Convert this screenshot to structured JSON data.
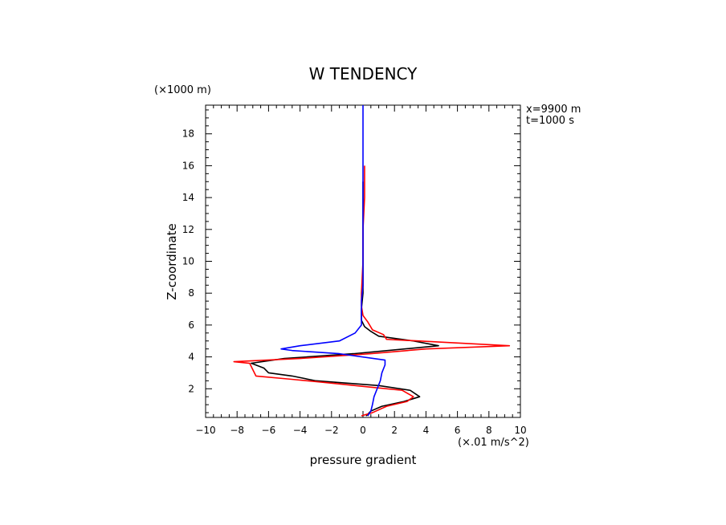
{
  "chart_data": {
    "type": "line",
    "title": "W TENDENCY",
    "xlabel": "pressure gradient",
    "ylabel": "Z-coordinate",
    "x_unit": "(×.01 m/s^2)",
    "y_unit": "(×1000 m)",
    "annotations": [
      "x=9900 m",
      "t=1000 s"
    ],
    "xlim": [
      -10,
      10
    ],
    "ylim": [
      0.2,
      19.8
    ],
    "xticks": [
      -10,
      -8,
      -6,
      -4,
      -2,
      0,
      2,
      4,
      6,
      8,
      10
    ],
    "yticks": [
      2,
      4,
      6,
      8,
      10,
      12,
      14,
      16,
      18
    ],
    "grid": false,
    "series": [
      {
        "color": "#000000",
        "points": [
          [
            0.2,
            0.3
          ],
          [
            0.5,
            0.6
          ],
          [
            1.2,
            0.9
          ],
          [
            2.6,
            1.2
          ],
          [
            3.6,
            1.5
          ],
          [
            3.0,
            1.9
          ],
          [
            1.0,
            2.2
          ],
          [
            -3.0,
            2.5
          ],
          [
            -4.5,
            2.8
          ],
          [
            -6.0,
            3.0
          ],
          [
            -6.3,
            3.3
          ],
          [
            -7.1,
            3.6
          ],
          [
            -5.0,
            3.9
          ],
          [
            -0.6,
            4.2
          ],
          [
            4.8,
            4.7
          ],
          [
            3.2,
            5.0
          ],
          [
            1.0,
            5.3
          ],
          [
            0.5,
            5.6
          ],
          [
            0.1,
            5.9
          ],
          [
            -0.1,
            6.3
          ],
          [
            -0.1,
            7.0
          ],
          [
            0.0,
            8.0
          ],
          [
            0.0,
            10.0
          ],
          [
            0.0,
            12.0
          ],
          [
            0.0,
            15.0
          ]
        ]
      },
      {
        "color": "#ff0000",
        "points": [
          [
            -0.1,
            0.3
          ],
          [
            0.6,
            0.5
          ],
          [
            1.5,
            0.9
          ],
          [
            2.8,
            1.2
          ],
          [
            3.2,
            1.5
          ],
          [
            2.5,
            1.9
          ],
          [
            0.5,
            2.1
          ],
          [
            -2.5,
            2.4
          ],
          [
            -4.6,
            2.6
          ],
          [
            -6.8,
            2.8
          ],
          [
            -7.0,
            3.2
          ],
          [
            -7.2,
            3.6
          ],
          [
            -8.2,
            3.7
          ],
          [
            -4.0,
            3.9
          ],
          [
            0.5,
            4.2
          ],
          [
            4.0,
            4.5
          ],
          [
            9.3,
            4.7
          ],
          [
            3.5,
            5.0
          ],
          [
            1.5,
            5.1
          ],
          [
            1.3,
            5.4
          ],
          [
            0.6,
            5.7
          ],
          [
            0.3,
            6.2
          ],
          [
            0.0,
            6.6
          ],
          [
            -0.1,
            7.2
          ],
          [
            -0.1,
            8.0
          ],
          [
            0.0,
            10.0
          ],
          [
            0.0,
            12.0
          ],
          [
            0.1,
            14.0
          ],
          [
            0.1,
            16.0
          ]
        ]
      },
      {
        "color": "#0000ff",
        "points": [
          [
            0.3,
            0.3
          ],
          [
            0.5,
            0.6
          ],
          [
            0.6,
            1.0
          ],
          [
            0.7,
            1.5
          ],
          [
            0.9,
            2.0
          ],
          [
            1.1,
            2.5
          ],
          [
            1.2,
            3.0
          ],
          [
            1.4,
            3.5
          ],
          [
            1.4,
            3.8
          ],
          [
            -1.5,
            4.2
          ],
          [
            -4.5,
            4.4
          ],
          [
            -5.2,
            4.5
          ],
          [
            -4.0,
            4.7
          ],
          [
            -1.5,
            5.0
          ],
          [
            -0.5,
            5.5
          ],
          [
            -0.1,
            6.0
          ],
          [
            -0.1,
            6.5
          ],
          [
            -0.1,
            7.0
          ],
          [
            -0.1,
            7.5
          ],
          [
            0.0,
            8.5
          ],
          [
            0.0,
            10.0
          ],
          [
            0.0,
            12.0
          ],
          [
            0.0,
            15.0
          ],
          [
            0.0,
            18.0
          ],
          [
            0.0,
            19.8
          ]
        ]
      }
    ]
  }
}
